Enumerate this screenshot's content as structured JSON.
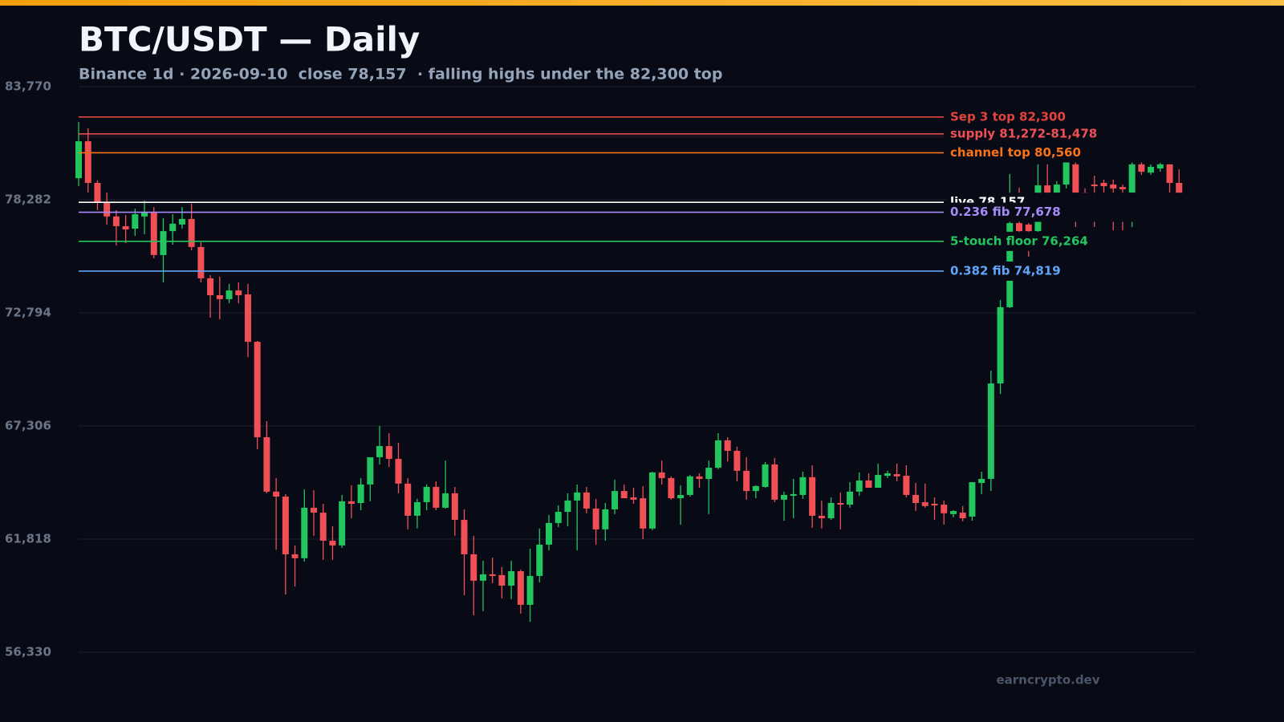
{
  "chart_data": {
    "type": "candlestick",
    "title": "BTC/USDT — Daily",
    "subtitle": "Binance 1d · 2026-09-10  close 78,157  · falling highs under the 82,300 top",
    "watermark": "earncrypto.dev",
    "ylim": [
      56330,
      83770
    ],
    "yticks": [
      {
        "value": 56330,
        "label": "56,330"
      },
      {
        "value": 61818,
        "label": "61,818"
      },
      {
        "value": 67306,
        "label": "67,306"
      },
      {
        "value": 72794,
        "label": "72,794"
      },
      {
        "value": 78282,
        "label": "78,282"
      },
      {
        "value": 83770,
        "label": "83,770"
      }
    ],
    "grid": true,
    "up_color": "#22c55e",
    "down_color": "#ef4f55",
    "open": [
      79330,
      81120,
      79100,
      78170,
      77470,
      77000,
      76880,
      77470,
      77660,
      75600,
      76760,
      77080,
      77350,
      75990,
      74470,
      73650,
      73460,
      73880,
      73690,
      71390,
      66760,
      64120,
      63880,
      61080,
      60890,
      63340,
      63100,
      61740,
      61510,
      63650,
      63570,
      64470,
      65790,
      66330,
      65710,
      64510,
      62950,
      63610,
      64350,
      63340,
      64040,
      62750,
      61080,
      59800,
      60110,
      60070,
      59560,
      60260,
      58630,
      60030,
      61550,
      62600,
      63140,
      63690,
      64080,
      63300,
      62290,
      63260,
      64150,
      63840,
      63800,
      62330,
      65050,
      64780,
      63800,
      63960,
      64860,
      64740,
      65280,
      66610,
      66100,
      65130,
      64150,
      64350,
      65440,
      63730,
      63920,
      63960,
      64820,
      62950,
      62830,
      63570,
      63490,
      64120,
      64660,
      64310,
      64890,
      64970,
      64890,
      63960,
      63610,
      63530,
      63490,
      63030,
      63100,
      62910,
      64540,
      64740,
      69370,
      73070,
      77150,
      77080,
      76760,
      78980,
      78630,
      79020,
      80000,
      78630,
      79020,
      79100,
      79020,
      78900,
      78630,
      80000,
      79600,
      79800,
      80000,
      79100
    ],
    "high": [
      82060,
      81750,
      79220,
      78630,
      77780,
      77540,
      77850,
      78240,
      77930,
      77390,
      77580,
      77930,
      78090,
      76220,
      74620,
      74550,
      74200,
      74270,
      74200,
      71430,
      67540,
      64780,
      64000,
      61510,
      64230,
      64190,
      63530,
      62440,
      63960,
      64430,
      64780,
      65790,
      67310,
      66960,
      66490,
      64780,
      63770,
      64470,
      64620,
      65630,
      64350,
      63260,
      61980,
      60770,
      60920,
      60460,
      60770,
      60340,
      61350,
      62330,
      62990,
      63450,
      64040,
      64470,
      64350,
      63770,
      63570,
      64700,
      64470,
      64310,
      64390,
      65090,
      65630,
      64860,
      64430,
      64930,
      65010,
      65630,
      66960,
      66760,
      66300,
      65790,
      64430,
      65560,
      65750,
      64120,
      64740,
      65090,
      65400,
      63690,
      63840,
      64080,
      64580,
      65050,
      65010,
      65480,
      65130,
      65480,
      65400,
      64540,
      64510,
      63840,
      63690,
      63220,
      63420,
      64580,
      65090,
      69990,
      73420,
      79530,
      78870,
      77150,
      80000,
      80000,
      79180,
      80580,
      80190,
      78830,
      79450,
      79260,
      79260,
      79020,
      80190,
      80190,
      80000,
      80070,
      80000,
      79760
    ],
    "low": [
      78940,
      78630,
      77780,
      77080,
      76060,
      76180,
      76530,
      76610,
      75440,
      74270,
      76100,
      76880,
      75830,
      74270,
      72560,
      72480,
      73260,
      73260,
      70650,
      66180,
      64040,
      61310,
      59130,
      59520,
      60730,
      61980,
      60810,
      60810,
      61390,
      62830,
      63220,
      63650,
      65440,
      65320,
      64040,
      62290,
      62330,
      63220,
      63220,
      63300,
      61980,
      59100,
      58120,
      58320,
      59680,
      58940,
      58900,
      58200,
      57810,
      59720,
      61270,
      62400,
      62440,
      61270,
      63070,
      61550,
      61740,
      63030,
      63840,
      63530,
      61820,
      62250,
      64470,
      63730,
      62520,
      63880,
      64310,
      63030,
      65210,
      65590,
      64620,
      63730,
      63800,
      64310,
      63610,
      62710,
      62830,
      63770,
      62360,
      62330,
      62750,
      62290,
      63340,
      63920,
      64310,
      64310,
      64780,
      64620,
      63840,
      63180,
      63340,
      62750,
      62520,
      62870,
      62680,
      62710,
      64000,
      64150,
      68860,
      73030,
      76690,
      75520,
      76610,
      78440,
      78440,
      78830,
      76960,
      77850,
      76960,
      78630,
      76800,
      76800,
      76960,
      79490,
      79490,
      79640,
      78630,
      78090
    ],
    "close": [
      81120,
      79100,
      78170,
      77470,
      77000,
      76840,
      77580,
      77660,
      75600,
      76760,
      77120,
      77350,
      75990,
      74470,
      73650,
      73460,
      73880,
      73650,
      71390,
      66760,
      64120,
      63880,
      61080,
      60890,
      63340,
      63100,
      61740,
      61510,
      63650,
      63530,
      64470,
      65790,
      66330,
      65710,
      64510,
      62950,
      63610,
      64350,
      63340,
      64040,
      62750,
      61080,
      59800,
      60110,
      60030,
      59560,
      60260,
      58630,
      60030,
      61550,
      62600,
      63140,
      63690,
      64080,
      63300,
      62290,
      63260,
      64150,
      63800,
      63730,
      62330,
      65050,
      64780,
      63800,
      63960,
      64860,
      64740,
      65280,
      66610,
      66100,
      65130,
      64150,
      64390,
      65440,
      63730,
      63960,
      64000,
      64820,
      62950,
      62830,
      63570,
      63490,
      64120,
      64660,
      64310,
      64930,
      65010,
      64860,
      63960,
      63570,
      63420,
      63450,
      63070,
      63180,
      62830,
      64580,
      64740,
      69370,
      73070,
      77150,
      76760,
      76760,
      78980,
      78630,
      79020,
      80190,
      78630,
      78240,
      78940,
      78940,
      78830,
      78790,
      80000,
      79640,
      79880,
      80000,
      79100,
      78157
    ],
    "levels": [
      {
        "label": "Sep 3 top 82,300",
        "value": 82300,
        "color": "#e0443c"
      },
      {
        "label": "supply 81,272-81,478",
        "value": 81478,
        "low": 81272,
        "color": "#ef4f55"
      },
      {
        "label": "channel top 80,560",
        "value": 80560,
        "color": "#f97316"
      },
      {
        "label": "live 78,157",
        "value": 78157,
        "color": "#ffffff"
      },
      {
        "label": "0.236 fib 77,678",
        "value": 77678,
        "color": "#a78bfa"
      },
      {
        "label": "5-touch floor 76,264",
        "value": 76264,
        "color": "#22c55e"
      },
      {
        "label": "0.382 fib 74,819",
        "value": 74819,
        "color": "#60a5fa"
      }
    ]
  }
}
